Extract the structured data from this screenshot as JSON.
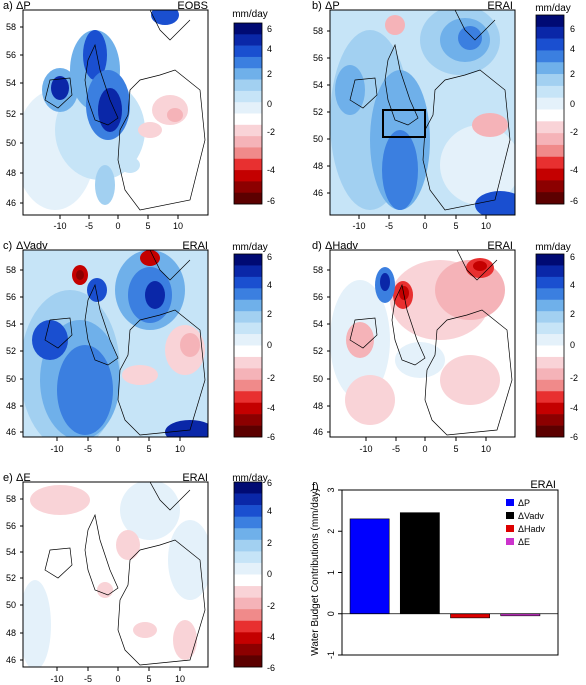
{
  "palette": [
    "#5c0000",
    "#8c0000",
    "#c40000",
    "#e83030",
    "#f08a8a",
    "#f5b3b8",
    "#f9d3d7",
    "#ffffff",
    "#e4f1fa",
    "#c6e4f7",
    "#a2d0f1",
    "#6fb0ea",
    "#3b7fe0",
    "#1a4fd0",
    "#0a27a8",
    "#000a73"
  ],
  "colorbar": {
    "unit": "mm/day",
    "ticks": [
      "6",
      "4",
      "2",
      "0",
      "-2",
      "-4",
      "-6"
    ]
  },
  "map_axes": {
    "x_ticks": [
      "-10",
      "-5",
      "0",
      "5",
      "10"
    ],
    "y_ticks": [
      "58",
      "56",
      "54",
      "52",
      "50",
      "48",
      "46"
    ]
  },
  "panels": [
    {
      "letter": "a)",
      "var": "ΔP",
      "source": "EOBS"
    },
    {
      "letter": "b)",
      "var": "ΔP",
      "source": "ERAI"
    },
    {
      "letter": "c)",
      "var": "ΔVadv",
      "source": "ERAI"
    },
    {
      "letter": "d)",
      "var": "ΔHadv",
      "source": "ERAI"
    },
    {
      "letter": "e)",
      "var": "ΔE",
      "source": "ERAI"
    }
  ],
  "chart_data": [
    {
      "type": "bar",
      "panel_letter": "f)",
      "title": "ERAI",
      "ylabel": "Water Budget Contributions (mm/day)",
      "ylim": [
        -1,
        3
      ],
      "y_ticks": [
        "3",
        "2",
        "1",
        "0",
        "-1"
      ],
      "categories": [
        "ΔP",
        "ΔVadv",
        "ΔHadv",
        "ΔE"
      ],
      "values": [
        2.3,
        2.45,
        -0.1,
        -0.05
      ],
      "colors": [
        "#0000ff",
        "#000000",
        "#dd0000",
        "#cc33cc"
      ],
      "legend_position": "top-right"
    }
  ]
}
